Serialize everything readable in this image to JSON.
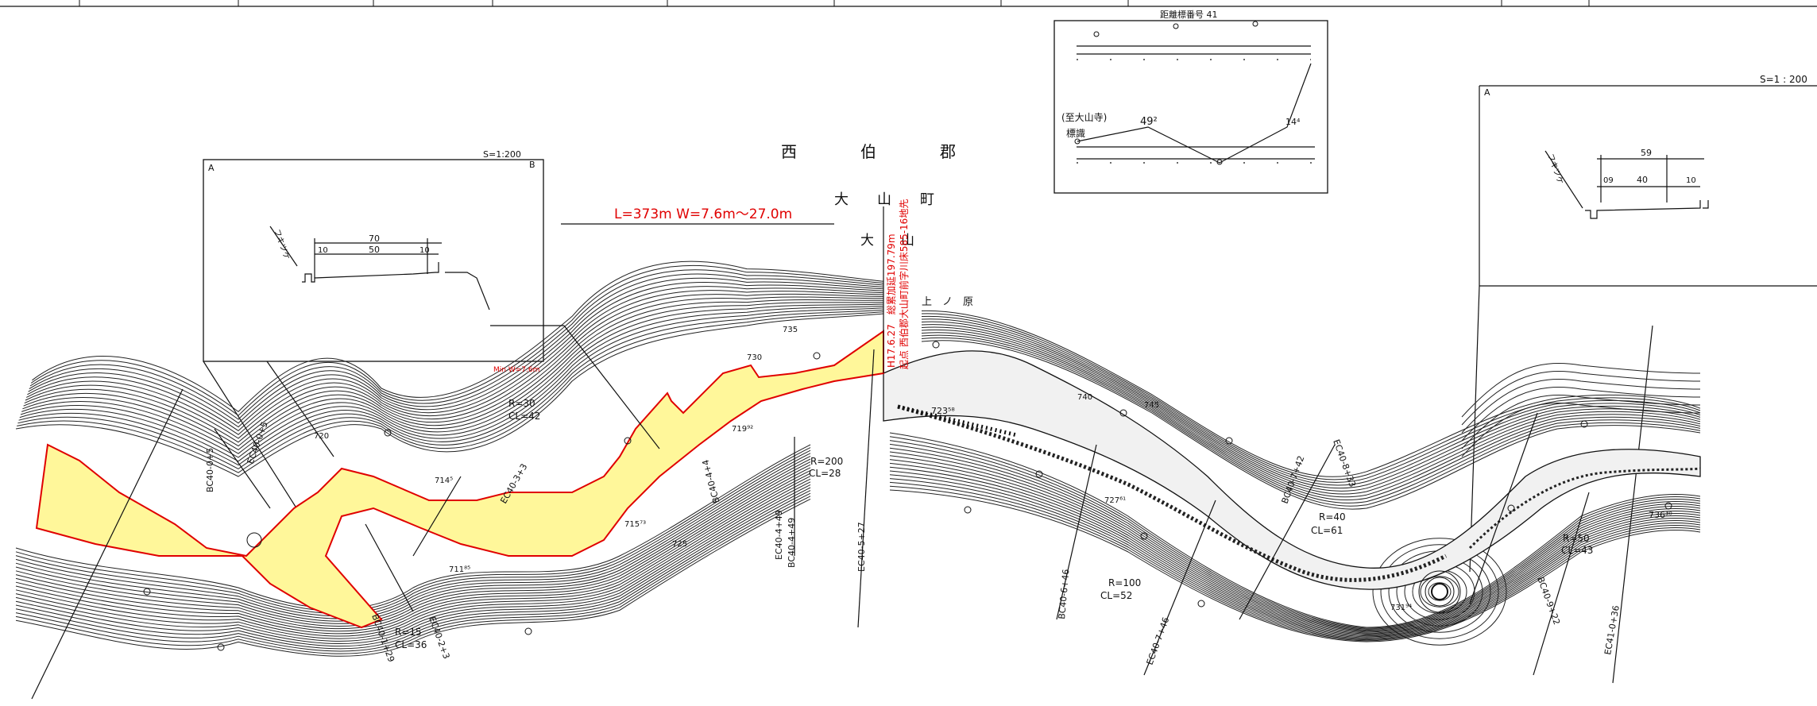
{
  "main_title": {
    "district": "西　　　　伯　　　　郡",
    "town": "大　　山　　町",
    "village": "大　　山",
    "locality": "上　ノ　原"
  },
  "route": {
    "summary": "L=373m W=7.6m～27.0m",
    "min_width_note": "Min W=7.6m",
    "vertical_note_1": "H17.6.27　総累加延197.79m",
    "vertical_note_2": "起点 西伯郡大山町前字川床585-16地先"
  },
  "section_left": {
    "label_a": "A",
    "label_b": "B",
    "scale": "S=1:200",
    "dim_total": "70",
    "dim_mid": "50",
    "dim_left": "10",
    "dim_right": "10",
    "side_label": "フキツケ"
  },
  "section_right": {
    "label_a": "A",
    "scale": "S=1 : 200",
    "dim_total": "59",
    "dim_mid": "40",
    "dim_left": "09",
    "dim_right": "10",
    "side_label": "フキツケ"
  },
  "inset_top": {
    "title": "距離標番号 41",
    "destination": "(至大山寺)",
    "sign": "標識",
    "dim_left": "49²",
    "dim_right": "14⁴"
  },
  "curve_labels": [
    {
      "text": "R=30"
    },
    {
      "text": "CL=42"
    },
    {
      "text": "R=200"
    },
    {
      "text": "CL=28"
    },
    {
      "text": "R=40"
    },
    {
      "text": "CL=61"
    },
    {
      "text": "R=100"
    },
    {
      "text": "CL=52"
    },
    {
      "text": "R=50"
    },
    {
      "text": "CL=43"
    },
    {
      "text": "R=15"
    },
    {
      "text": "CL=36"
    }
  ],
  "station_labels": [
    {
      "text": "BC40-0+5"
    },
    {
      "text": "EC40-0+5"
    },
    {
      "text": "EC40-3+3"
    },
    {
      "text": "BC40-4+4"
    },
    {
      "text": "EC40-4+49"
    },
    {
      "text": "BC40-4+49"
    },
    {
      "text": "EC40-5+27"
    },
    {
      "text": "BC40-6+46"
    },
    {
      "text": "EC40-7+46"
    },
    {
      "text": "BC40-7+42"
    },
    {
      "text": "EC40-8+33"
    },
    {
      "text": "BC40-9+22"
    },
    {
      "text": "EC41-0+36"
    },
    {
      "text": "EC40-2+3"
    },
    {
      "text": "BC40-1+29"
    }
  ],
  "elevations": [
    {
      "text": "735"
    },
    {
      "text": "730"
    },
    {
      "text": "723⁵⁸"
    },
    {
      "text": "719⁹²"
    },
    {
      "text": "714⁵"
    },
    {
      "text": "715⁷³"
    },
    {
      "text": "711⁸⁵"
    },
    {
      "text": "740"
    },
    {
      "text": "745"
    },
    {
      "text": "727⁶¹"
    },
    {
      "text": "736³⁰"
    },
    {
      "text": "731⁹⁴"
    },
    {
      "text": "720"
    },
    {
      "text": "725"
    }
  ],
  "colors": {
    "road_fill": "#fff79a",
    "road_edge": "#e00000",
    "annotation": "#e00000",
    "ink": "#111111"
  }
}
